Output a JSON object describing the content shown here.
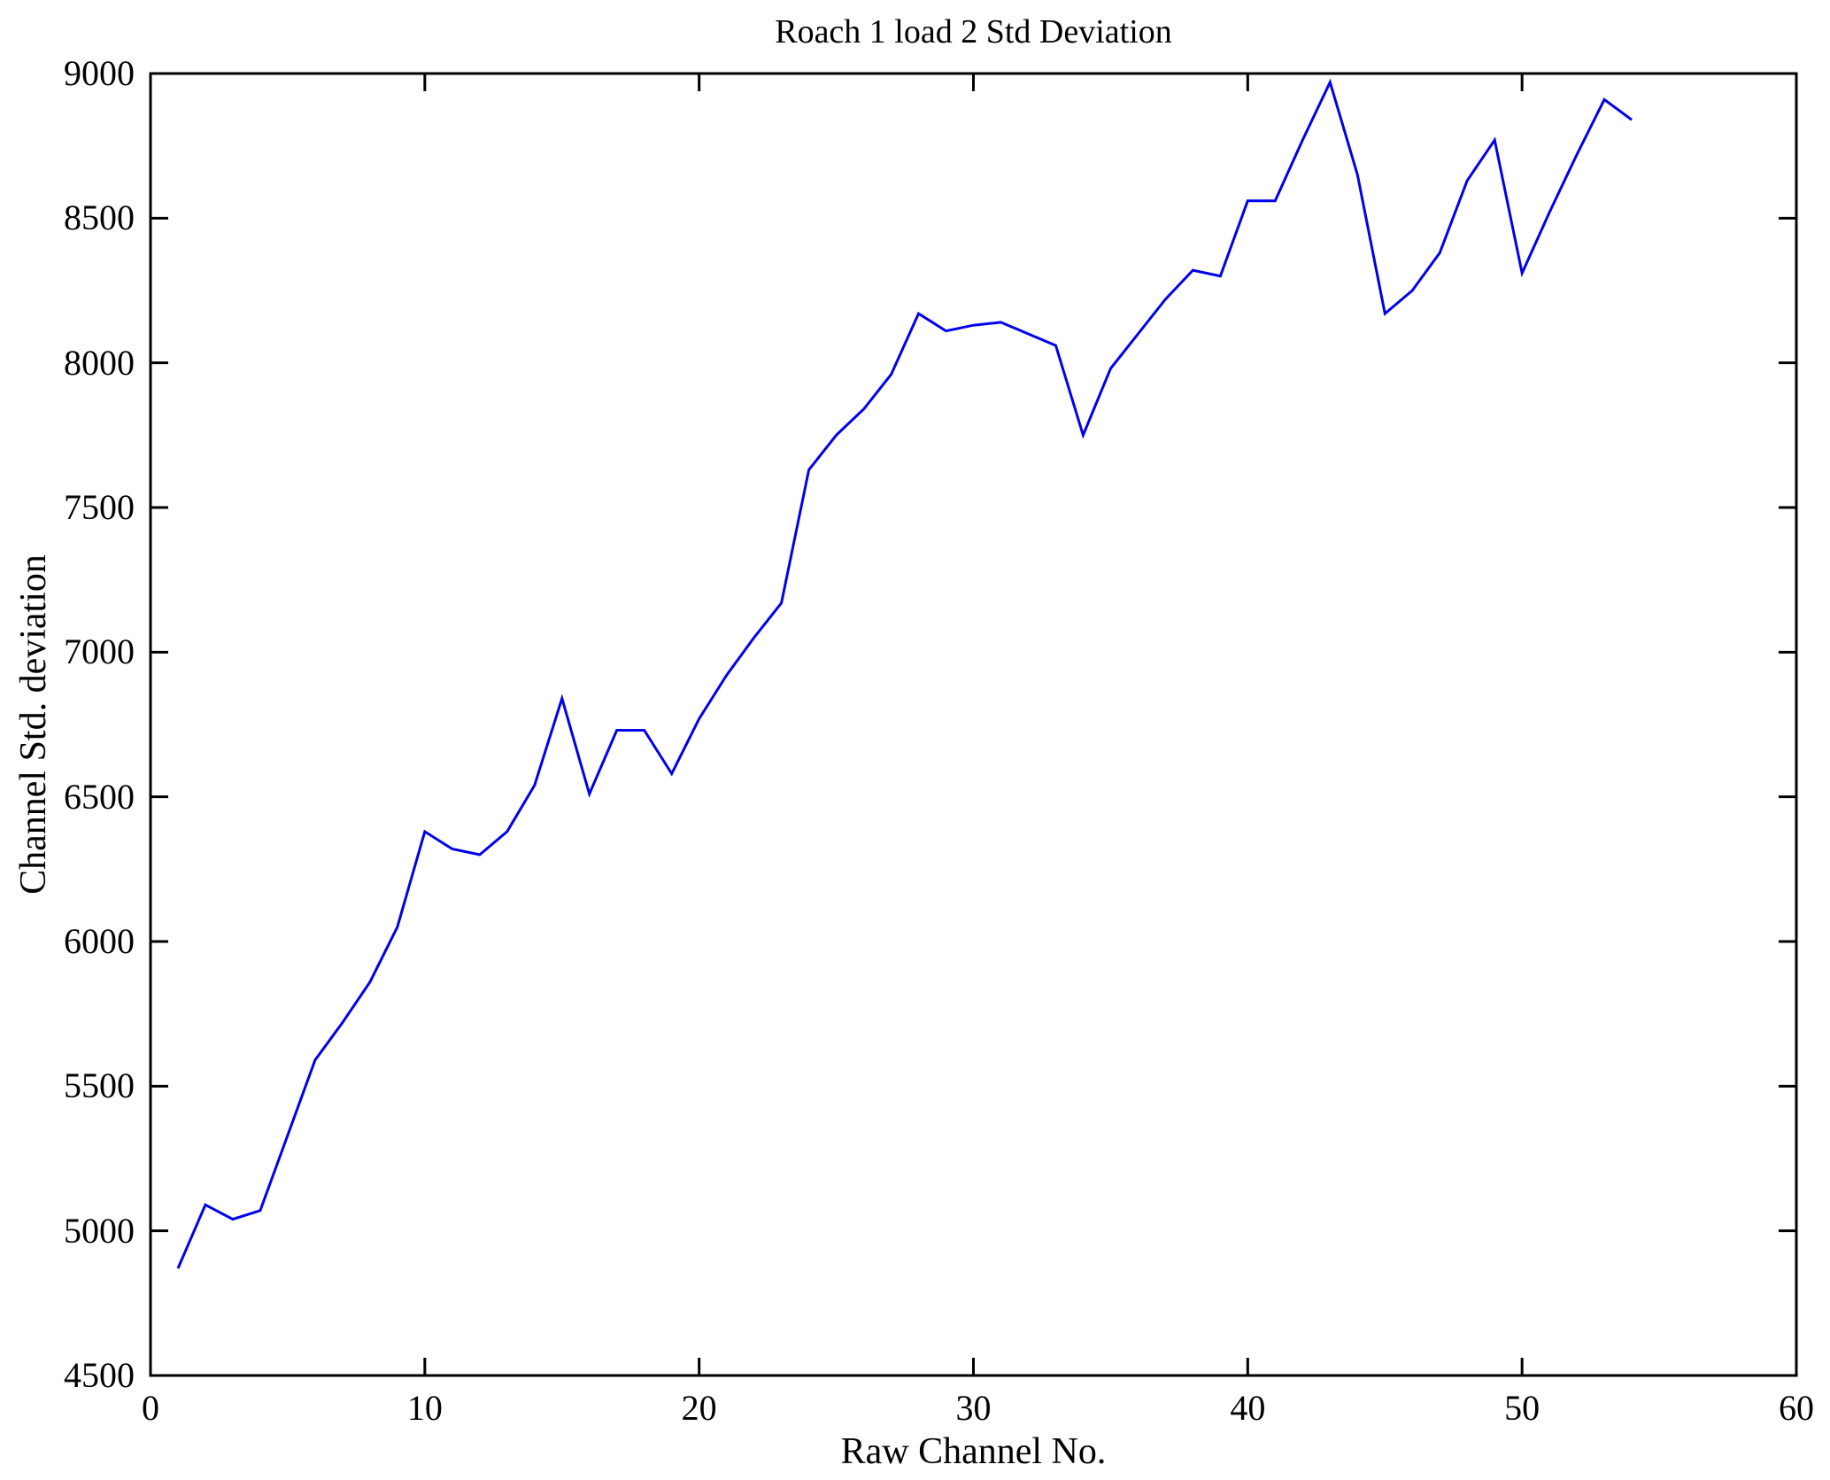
{
  "chart_data": {
    "type": "line",
    "title": "Roach 1 load 2 Std Deviation",
    "xlabel": "Raw Channel No.",
    "ylabel": "Channel Std. deviation",
    "xlim": [
      0,
      60
    ],
    "ylim": [
      4500,
      9000
    ],
    "xticks": [
      0,
      10,
      20,
      30,
      40,
      50,
      60
    ],
    "yticks": [
      4500,
      5000,
      5500,
      6000,
      6500,
      7000,
      7500,
      8000,
      8500,
      9000
    ],
    "grid": false,
    "legend": "none",
    "box": "on",
    "line_color": "#0000EE",
    "axis_color": "#000000",
    "background_color": "#FFFFFF",
    "series": [
      {
        "name": "Channel Std. deviation",
        "x": [
          1,
          2,
          3,
          4,
          5,
          6,
          7,
          8,
          9,
          10,
          11,
          12,
          13,
          14,
          15,
          16,
          17,
          18,
          19,
          20,
          21,
          22,
          23,
          24,
          25,
          26,
          27,
          28,
          29,
          30,
          31,
          32,
          33,
          34,
          35,
          36,
          37,
          38,
          39,
          40,
          41,
          42,
          43,
          44,
          45,
          46,
          47,
          48,
          49,
          50,
          51,
          52,
          53,
          54
        ],
        "y": [
          4870,
          5090,
          5040,
          5070,
          5330,
          5590,
          5720,
          5860,
          6050,
          6380,
          6320,
          6300,
          6380,
          6540,
          6840,
          6510,
          6730,
          6730,
          6580,
          6770,
          6920,
          7050,
          7170,
          7630,
          7750,
          7840,
          7960,
          8170,
          8110,
          8130,
          8140,
          8100,
          8060,
          7750,
          7980,
          8100,
          8220,
          8320,
          8300,
          8560,
          8560,
          8770,
          8970,
          8650,
          8170,
          8250,
          8380,
          8630,
          8770,
          8310,
          8520,
          8720,
          8910,
          8840
        ]
      }
    ]
  }
}
